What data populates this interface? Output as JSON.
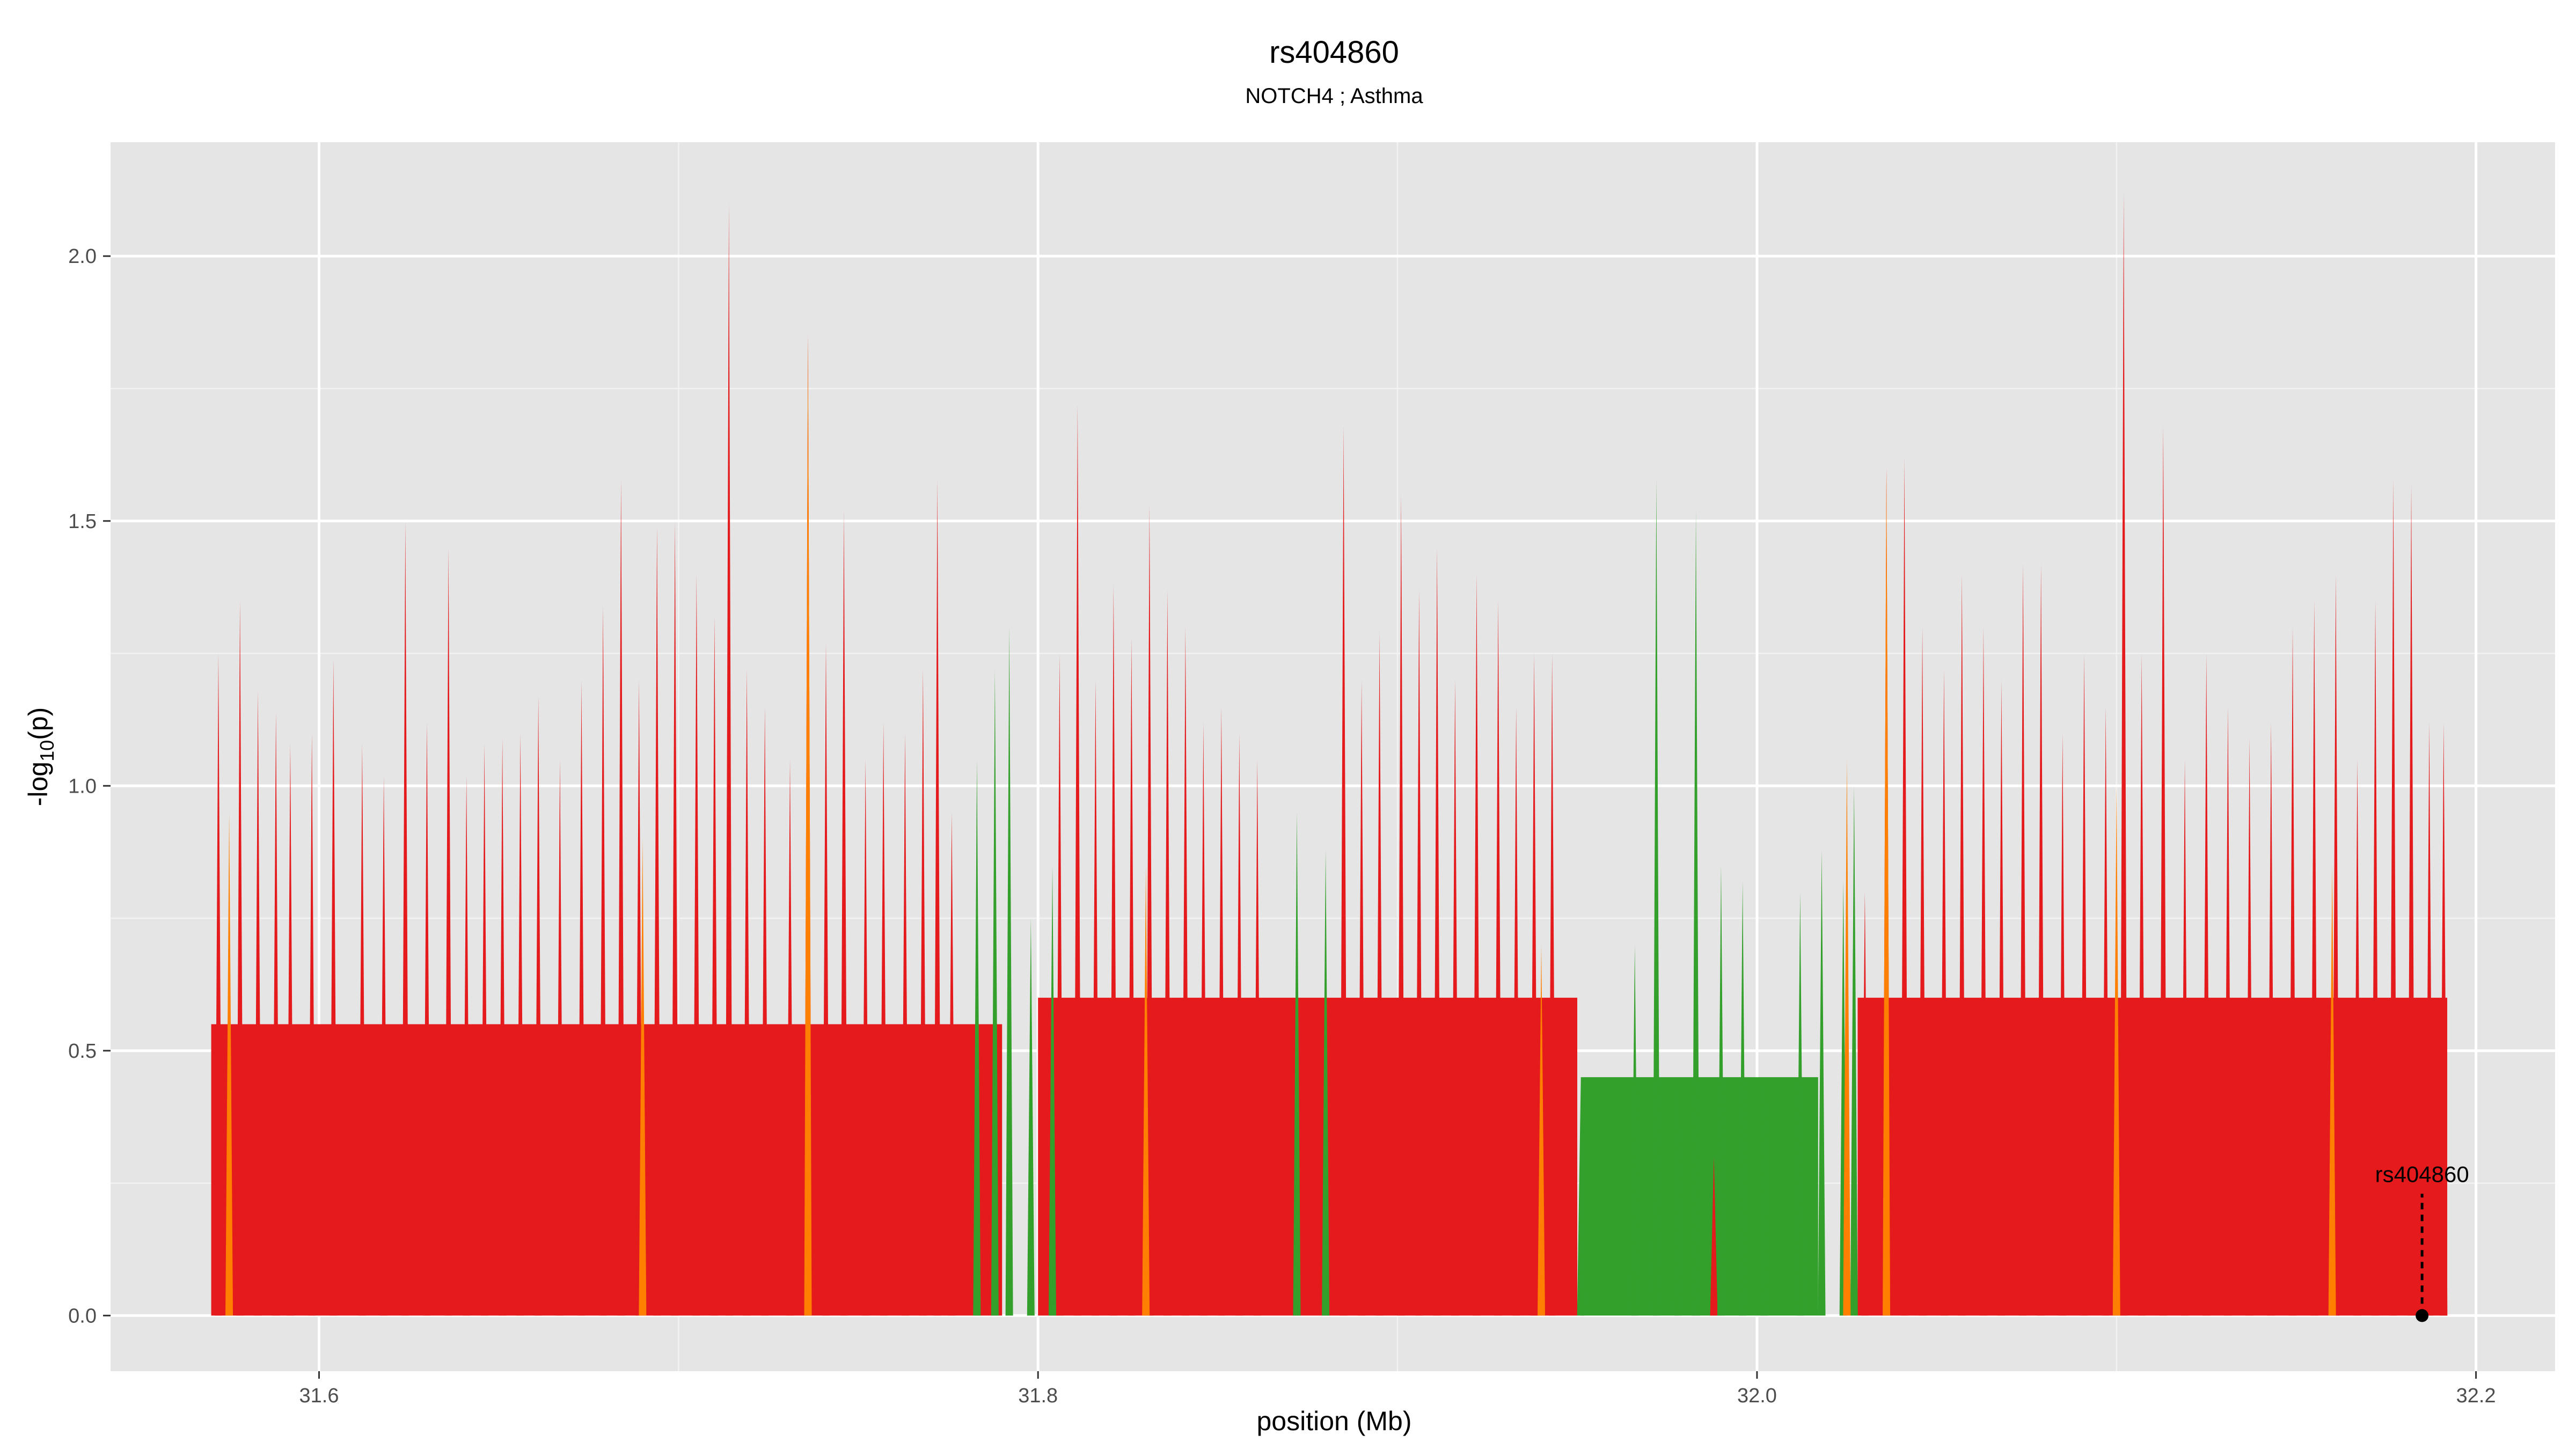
{
  "chart_data": {
    "type": "area",
    "title": "rs404860",
    "subtitle": "NOTCH4 ; Asthma",
    "xlabel": "position (Mb)",
    "ylabel": "-log10(p)",
    "ylabel_parts": {
      "prefix": "-log",
      "sub": "10",
      "suffix": "(p)"
    },
    "xlim": [
      31.542,
      32.222
    ],
    "ylim": [
      -0.105,
      2.215
    ],
    "x_ticks": [
      {
        "value": 31.6,
        "label": "31.6"
      },
      {
        "value": 31.8,
        "label": "31.8"
      },
      {
        "value": 32.0,
        "label": "32.0"
      },
      {
        "value": 32.2,
        "label": "32.2"
      }
    ],
    "y_ticks": [
      {
        "value": 0.0,
        "label": "0.0"
      },
      {
        "value": 0.5,
        "label": "0.5"
      },
      {
        "value": 1.0,
        "label": "1.0"
      },
      {
        "value": 1.5,
        "label": "1.5"
      },
      {
        "value": 2.0,
        "label": "2.0"
      }
    ],
    "grid": true,
    "background": "#e5e5e5",
    "series": [
      {
        "color": "#e41a1c",
        "values": [
          [
            31.572,
            1.25
          ],
          [
            31.578,
            1.35
          ],
          [
            31.583,
            1.18
          ],
          [
            31.588,
            1.14
          ],
          [
            31.592,
            1.08
          ],
          [
            31.598,
            1.1
          ],
          [
            31.604,
            1.24
          ],
          [
            31.612,
            1.08
          ],
          [
            31.618,
            1.02
          ],
          [
            31.624,
            1.5
          ],
          [
            31.63,
            1.12
          ],
          [
            31.636,
            1.45
          ],
          [
            31.641,
            1.02
          ],
          [
            31.646,
            1.08
          ],
          [
            31.651,
            1.09
          ],
          [
            31.656,
            1.1
          ],
          [
            31.661,
            1.17
          ],
          [
            31.667,
            1.05
          ],
          [
            31.673,
            1.2
          ],
          [
            31.679,
            1.34
          ],
          [
            31.684,
            1.58
          ],
          [
            31.689,
            1.2
          ],
          [
            31.694,
            1.49
          ],
          [
            31.699,
            1.5
          ],
          [
            31.705,
            1.4
          ],
          [
            31.71,
            1.32
          ],
          [
            31.714,
            2.1
          ],
          [
            31.719,
            1.22
          ],
          [
            31.724,
            1.15
          ],
          [
            31.731,
            1.05
          ],
          [
            31.736,
            1.85
          ],
          [
            31.741,
            1.27
          ],
          [
            31.746,
            1.52
          ],
          [
            31.752,
            1.05
          ],
          [
            31.757,
            1.12
          ],
          [
            31.763,
            1.1
          ],
          [
            31.768,
            1.22
          ],
          [
            31.772,
            1.58
          ],
          [
            31.776,
            0.95
          ],
          [
            31.806,
            1.25
          ],
          [
            31.811,
            1.72
          ],
          [
            31.816,
            1.2
          ],
          [
            31.821,
            1.38
          ],
          [
            31.826,
            1.28
          ],
          [
            31.831,
            1.53
          ],
          [
            31.836,
            1.37
          ],
          [
            31.841,
            1.3
          ],
          [
            31.846,
            1.12
          ],
          [
            31.851,
            1.15
          ],
          [
            31.856,
            1.1
          ],
          [
            31.861,
            1.05
          ],
          [
            31.885,
            1.68
          ],
          [
            31.89,
            1.2
          ],
          [
            31.895,
            1.29
          ],
          [
            31.901,
            1.55
          ],
          [
            31.906,
            1.37
          ],
          [
            31.911,
            1.45
          ],
          [
            31.916,
            1.2
          ],
          [
            31.922,
            1.4
          ],
          [
            31.928,
            1.35
          ],
          [
            31.933,
            1.15
          ],
          [
            31.938,
            1.25
          ],
          [
            31.943,
            1.25
          ],
          [
            31.988,
            0.3
          ],
          [
            32.03,
            0.8
          ],
          [
            32.036,
            1.6
          ],
          [
            32.041,
            1.62
          ],
          [
            32.046,
            1.3
          ],
          [
            32.052,
            1.22
          ],
          [
            32.057,
            1.4
          ],
          [
            32.063,
            1.3
          ],
          [
            32.068,
            1.2
          ],
          [
            32.074,
            1.42
          ],
          [
            32.079,
            1.42
          ],
          [
            32.085,
            1.1
          ],
          [
            32.091,
            1.25
          ],
          [
            32.097,
            1.15
          ],
          [
            32.102,
            2.12
          ],
          [
            32.107,
            1.25
          ],
          [
            32.113,
            1.68
          ],
          [
            32.119,
            1.05
          ],
          [
            32.125,
            1.25
          ],
          [
            32.131,
            1.15
          ],
          [
            32.137,
            1.09
          ],
          [
            32.143,
            1.12
          ],
          [
            32.149,
            1.3
          ],
          [
            32.155,
            1.35
          ],
          [
            32.161,
            1.4
          ],
          [
            32.167,
            1.05
          ],
          [
            32.172,
            1.35
          ],
          [
            32.177,
            1.58
          ],
          [
            32.182,
            1.57
          ],
          [
            32.187,
            1.12
          ],
          [
            32.191,
            1.12
          ]
        ]
      },
      {
        "color": "#33a02c",
        "values": [
          [
            31.783,
            1.05
          ],
          [
            31.788,
            1.22
          ],
          [
            31.792,
            1.3
          ],
          [
            31.798,
            0.75
          ],
          [
            31.804,
            0.85
          ],
          [
            31.872,
            0.95
          ],
          [
            31.88,
            0.88
          ],
          [
            31.951,
            0.45
          ],
          [
            31.966,
            0.7
          ],
          [
            31.972,
            1.58
          ],
          [
            31.978,
            0.45
          ],
          [
            31.983,
            1.52
          ],
          [
            31.99,
            0.85
          ],
          [
            31.996,
            0.82
          ],
          [
            32.002,
            0.45
          ],
          [
            32.012,
            0.8
          ],
          [
            32.018,
            0.88
          ],
          [
            32.024,
            0.82
          ],
          [
            32.027,
            1.0
          ]
        ]
      },
      {
        "color": "#ff7f00",
        "values": [
          [
            31.575,
            0.95
          ],
          [
            31.69,
            0.9
          ],
          [
            31.736,
            1.85
          ],
          [
            31.83,
            0.85
          ],
          [
            31.94,
            0.7
          ],
          [
            32.025,
            1.05
          ],
          [
            32.036,
            1.6
          ],
          [
            32.1,
            1.0
          ],
          [
            32.16,
            0.85
          ]
        ]
      }
    ],
    "annotations": [
      {
        "label": "rs404860",
        "x": 32.185,
        "y": 0.0
      }
    ]
  },
  "colors": {
    "panel_bg": "#e5e5e5",
    "grid_major": "#ffffff",
    "red": "#e41a1c",
    "green": "#33a02c",
    "orange": "#ff7f00"
  }
}
